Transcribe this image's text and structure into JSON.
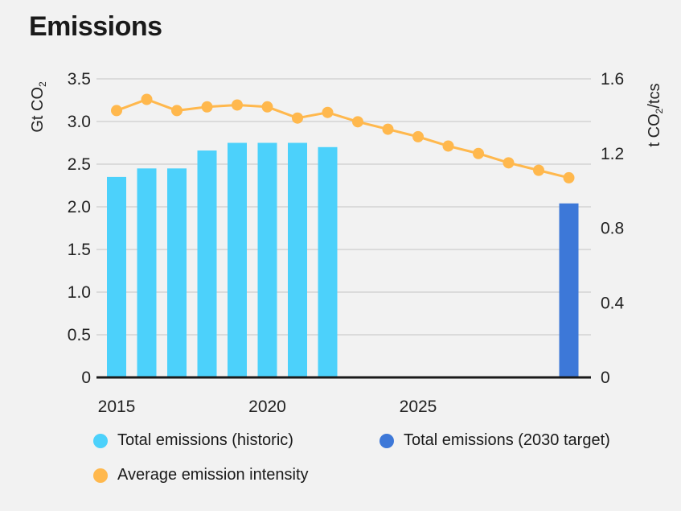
{
  "chart_data": {
    "type": "bar",
    "title": "Emissions",
    "ylabel_left": "Gt CO2",
    "ylabel_right": "t CO2/tcs",
    "left_ticks": [
      "0",
      "0.5",
      "1.0",
      "1.5",
      "2.0",
      "2.5",
      "3.0",
      "3.5"
    ],
    "right_ticks": [
      "0",
      "0.4",
      "0.8",
      "1.2",
      "1.6"
    ],
    "x_ticks": [
      {
        "label": "2015",
        "year": 2015
      },
      {
        "label": "2020",
        "year": 2020
      },
      {
        "label": "2025",
        "year": 2025
      }
    ],
    "ylim_left": [
      0,
      3.5
    ],
    "ylim_right": [
      0,
      1.6
    ],
    "xlim": [
      2015,
      2030
    ],
    "series": [
      {
        "name": "Total emissions (historic)",
        "kind": "bar",
        "axis": "left",
        "color": "#4cd1fb",
        "x": [
          2015,
          2016,
          2017,
          2018,
          2019,
          2020,
          2021,
          2022
        ],
        "values": [
          2.35,
          2.45,
          2.45,
          2.66,
          2.75,
          2.75,
          2.75,
          2.7
        ]
      },
      {
        "name": "Total emissions (2030 target)",
        "kind": "bar",
        "axis": "left",
        "color": "#3d78d8",
        "x": [
          2030
        ],
        "values": [
          2.04
        ]
      },
      {
        "name": "Average emission intensity",
        "kind": "line",
        "axis": "right",
        "color": "#ffb84d",
        "x": [
          2015,
          2016,
          2017,
          2018,
          2019,
          2020,
          2021,
          2022,
          2023,
          2024,
          2025,
          2026,
          2027,
          2028,
          2029,
          2030
        ],
        "values": [
          1.43,
          1.49,
          1.43,
          1.45,
          1.46,
          1.45,
          1.39,
          1.42,
          1.37,
          1.33,
          1.29,
          1.24,
          1.2,
          1.15,
          1.11,
          1.07
        ]
      }
    ]
  },
  "legend": [
    {
      "label": "Total emissions (historic)",
      "color": "#4cd1fb"
    },
    {
      "label": "Total emissions (2030 target)",
      "color": "#3d78d8"
    },
    {
      "label": "Average emission intensity",
      "color": "#ffb84d"
    }
  ]
}
